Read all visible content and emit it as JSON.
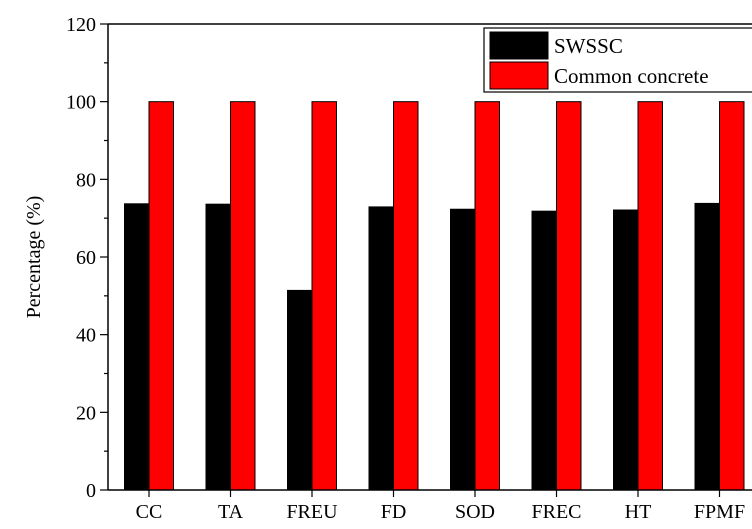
{
  "chart_data": {
    "type": "bar",
    "categories": [
      "CC",
      "TA",
      "FREU",
      "FD",
      "SOD",
      "FREC",
      "HT",
      "FPMF"
    ],
    "series": [
      {
        "name": "SWSSC",
        "color": "#000000",
        "values": [
          73.7,
          73.6,
          51.4,
          72.9,
          72.3,
          71.8,
          72.1,
          73.8
        ]
      },
      {
        "name": "Common concrete",
        "color": "#ff0000",
        "values": [
          100,
          100,
          100,
          100,
          100,
          100,
          100,
          100
        ]
      }
    ],
    "title": "",
    "xlabel": "",
    "ylabel": "Percentage (%)",
    "ylim": [
      0,
      120
    ],
    "yticks": [
      0,
      20,
      40,
      60,
      80,
      100,
      120
    ],
    "grid": false,
    "legend_position": "top-right"
  }
}
